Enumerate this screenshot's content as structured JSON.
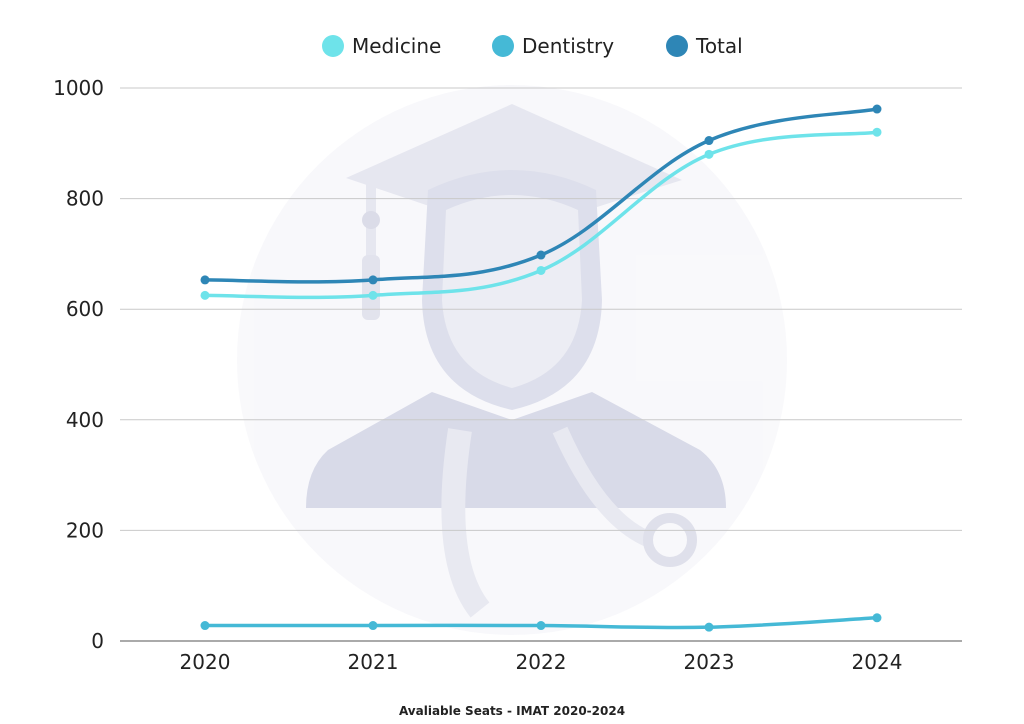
{
  "chart_data": {
    "type": "line",
    "caption": "Avaliable Seats - IMAT 2020-2024",
    "categories": [
      "2020",
      "2021",
      "2022",
      "2023",
      "2024"
    ],
    "y_ticks": [
      "0",
      "200",
      "400",
      "600",
      "800",
      "1000"
    ],
    "ylim": [
      0,
      1000
    ],
    "grid": true,
    "legend_position": "top-center",
    "series": [
      {
        "name": "Medicine",
        "color": "#6ee3ea",
        "values": [
          625,
          625,
          670,
          880,
          920
        ]
      },
      {
        "name": "Dentistry",
        "color": "#45b9d6",
        "values": [
          28,
          28,
          28,
          25,
          42
        ]
      },
      {
        "name": "Total",
        "color": "#2e86b6",
        "values": [
          653,
          653,
          698,
          905,
          962
        ]
      }
    ]
  }
}
